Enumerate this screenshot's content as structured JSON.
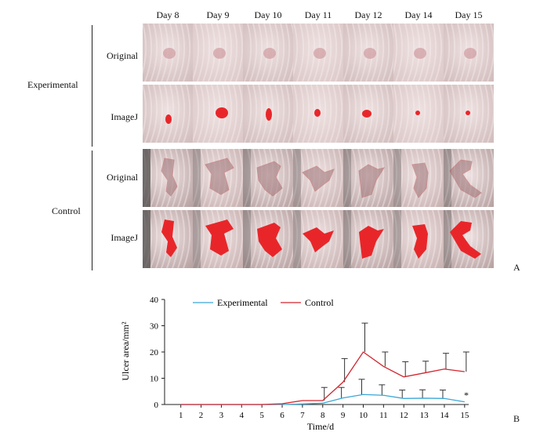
{
  "figure": {
    "days": [
      "Day 8",
      "Day 9",
      "Day 10",
      "Day 11",
      "Day 12",
      "Day 14",
      "Day 15"
    ],
    "groups": [
      "Experimental",
      "Control"
    ],
    "row_labels": [
      "Original",
      "ImageJ"
    ],
    "panel_a": "A",
    "panel_b": "B",
    "colors": {
      "wound_mask": "#e8262a",
      "skin_tone": "#d9c4c4",
      "axis": "#222222"
    }
  },
  "chart_data": {
    "type": "line",
    "x": [
      1,
      2,
      3,
      4,
      5,
      6,
      7,
      8,
      9,
      10,
      11,
      12,
      13,
      14,
      15
    ],
    "xlabel": "Time/d",
    "ylabel": "Ulcer area/mm²",
    "ylim": [
      0,
      40
    ],
    "yticks": [
      0,
      10,
      20,
      30,
      40
    ],
    "legend_position": "top",
    "annotation": "*",
    "series": [
      {
        "name": "Experimental",
        "color": "#3aa7d8",
        "values": [
          0,
          0,
          0,
          0,
          0,
          0,
          0.2,
          0.5,
          2.5,
          3.8,
          3.5,
          2.3,
          2.4,
          2.3,
          1.0
        ],
        "error": [
          0,
          0,
          0,
          0,
          0,
          0,
          0,
          0,
          4.0,
          5.8,
          4.0,
          3.2,
          3.2,
          3.2,
          0
        ]
      },
      {
        "name": "Control",
        "color": "#d1262e",
        "values": [
          0,
          0,
          0,
          0,
          0,
          0.3,
          1.5,
          1.5,
          8.5,
          20.0,
          14.5,
          10.5,
          12.0,
          13.5,
          12.5
        ],
        "error": [
          0,
          0,
          0,
          0,
          0,
          0,
          0,
          5.0,
          9.0,
          11.0,
          5.5,
          5.8,
          4.5,
          6.0,
          7.5
        ]
      }
    ]
  }
}
